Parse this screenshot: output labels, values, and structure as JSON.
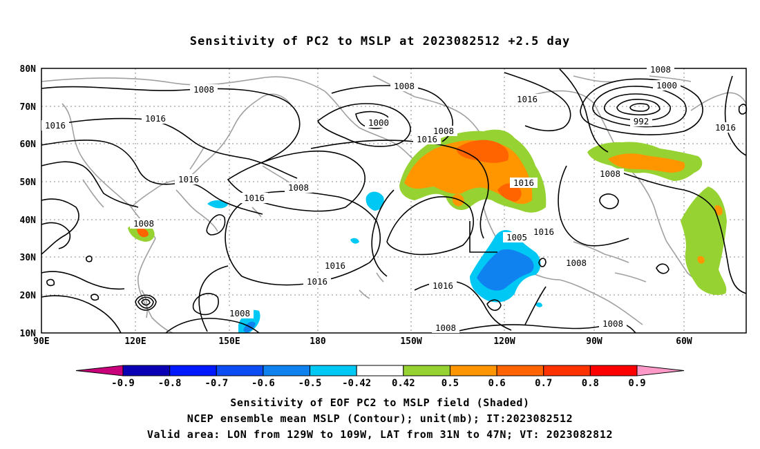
{
  "title": "Sensitivity of PC2 to MSLP at 2023082512 +2.5 day",
  "map": {
    "lat_labels": [
      "80N",
      "70N",
      "60N",
      "50N",
      "40N",
      "30N",
      "20N",
      "10N"
    ],
    "lon_labels": [
      "90E",
      "120E",
      "150E",
      "180",
      "150W",
      "120W",
      "90W",
      "60W"
    ],
    "contour_labels": [
      {
        "text": "1008"
      },
      {
        "text": "1016"
      },
      {
        "text": "1016"
      },
      {
        "text": "1016"
      },
      {
        "text": "1008"
      },
      {
        "text": "1016"
      },
      {
        "text": "1008"
      },
      {
        "text": "1000"
      },
      {
        "text": "1008"
      },
      {
        "text": "1016"
      },
      {
        "text": "1008"
      },
      {
        "text": "1016"
      },
      {
        "text": "1016"
      },
      {
        "text": "1008"
      },
      {
        "text": "1016"
      },
      {
        "text": "1016"
      },
      {
        "text": "1005"
      },
      {
        "text": "1016"
      },
      {
        "text": "1008"
      },
      {
        "text": "1008"
      },
      {
        "text": "1008"
      },
      {
        "text": "1000"
      },
      {
        "text": "992"
      },
      {
        "text": "1016"
      },
      {
        "text": "1008"
      },
      {
        "text": "1016"
      },
      {
        "text": "1008"
      },
      {
        "text": "1008"
      }
    ]
  },
  "colorbar": {
    "labels": [
      "-0.9",
      "-0.8",
      "-0.7",
      "-0.6",
      "-0.5",
      "-0.42",
      "0.42",
      "0.5",
      "0.6",
      "0.7",
      "0.8",
      "0.9"
    ],
    "colors": [
      "#c8007a",
      "#0a00b4",
      "#0019ff",
      "#0b4cf5",
      "#0f82f0",
      "#00c8f5",
      "#ffffff",
      "#96d232",
      "#ff9600",
      "#ff6400",
      "#ff3200",
      "#ff0000",
      "#ff9ac8"
    ]
  },
  "caption": {
    "line1": "Sensitivity of EOF PC2 to MSLP field (Shaded)",
    "line2": "NCEP ensemble mean MSLP (Contour); unit(mb); IT:2023082512",
    "line3": "Valid area: LON from 129W to 109W, LAT from 31N to 47N; VT: 2023082812"
  }
}
